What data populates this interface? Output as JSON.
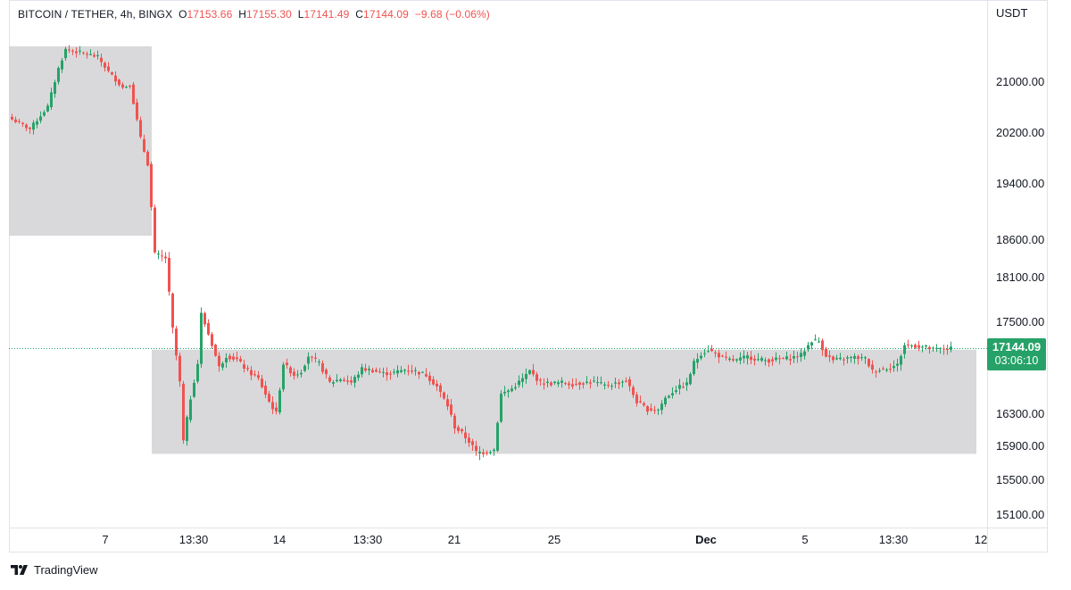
{
  "header": {
    "symbol": "BITCOIN / TETHER, 4h, BINGX",
    "o_label": "O",
    "o_value": "17153.66",
    "h_label": "H",
    "h_value": "17155.30",
    "l_label": "L",
    "l_value": "17141.49",
    "c_label": "C",
    "c_value": "17144.09",
    "change": "−9.68 (−0.06%)"
  },
  "currency": "USDT",
  "price_badge": {
    "price": "17144.09",
    "countdown": "03:06:10"
  },
  "brand": {
    "name": "TradingView",
    "logo_icon": "tradingview-logo-icon"
  },
  "colors": {
    "up": "#26a269",
    "down": "#ef5350",
    "zone": "#d7d7d9",
    "badge": "#26a269"
  },
  "chart_data": {
    "type": "candlestick",
    "y_ticks": [
      "21000.00",
      "20200.00",
      "19400.00",
      "18600.00",
      "18100.00",
      "17500.00",
      "16300.00",
      "15900.00",
      "15500.00",
      "15100.00"
    ],
    "x_ticks": [
      "7",
      "13:30",
      "14",
      "13:30",
      "21",
      "25",
      "Dec",
      "5",
      "13:30",
      "12"
    ],
    "zones": [
      {
        "name": "upper-zone",
        "from_index": 0,
        "to_index": 39,
        "low": 18650,
        "high": 21550
      },
      {
        "name": "lower-zone",
        "from_index": 40,
        "to_index": 270,
        "low": 15800,
        "high": 17130
      }
    ],
    "last_price": 17144.09,
    "key_points": [
      [
        0,
        20400
      ],
      [
        5,
        20250
      ],
      [
        10,
        20600
      ],
      [
        13,
        21200
      ],
      [
        15,
        21500
      ],
      [
        20,
        21440
      ],
      [
        24,
        21380
      ],
      [
        27,
        21150
      ],
      [
        31,
        20900
      ],
      [
        33,
        20950
      ],
      [
        36,
        20100
      ],
      [
        38,
        19700
      ],
      [
        39,
        19050
      ],
      [
        40,
        18400
      ],
      [
        43,
        18350
      ],
      [
        45,
        17400
      ],
      [
        47,
        16700
      ],
      [
        48,
        15950
      ],
      [
        50,
        16500
      ],
      [
        52,
        16950
      ],
      [
        53,
        17600
      ],
      [
        56,
        17200
      ],
      [
        58,
        16900
      ],
      [
        60,
        17050
      ],
      [
        63,
        17000
      ],
      [
        66,
        16850
      ],
      [
        69,
        16750
      ],
      [
        72,
        16450
      ],
      [
        74,
        16300
      ],
      [
        76,
        16950
      ],
      [
        79,
        16800
      ],
      [
        81,
        16850
      ],
      [
        83,
        17050
      ],
      [
        86,
        16950
      ],
      [
        89,
        16700
      ],
      [
        92,
        16750
      ],
      [
        95,
        16700
      ],
      [
        98,
        16880
      ],
      [
        101,
        16860
      ],
      [
        104,
        16820
      ],
      [
        107,
        16830
      ],
      [
        110,
        16870
      ],
      [
        113,
        16850
      ],
      [
        116,
        16800
      ],
      [
        119,
        16650
      ],
      [
        122,
        16400
      ],
      [
        124,
        16130
      ],
      [
        126,
        16050
      ],
      [
        128,
        15950
      ],
      [
        130,
        15820
      ],
      [
        132,
        15820
      ],
      [
        135,
        15850
      ],
      [
        137,
        16550
      ],
      [
        140,
        16620
      ],
      [
        143,
        16750
      ],
      [
        145,
        16850
      ],
      [
        148,
        16700
      ],
      [
        151,
        16690
      ],
      [
        154,
        16700
      ],
      [
        157,
        16680
      ],
      [
        160,
        16700
      ],
      [
        163,
        16710
      ],
      [
        166,
        16660
      ],
      [
        169,
        16690
      ],
      [
        172,
        16730
      ],
      [
        175,
        16450
      ],
      [
        178,
        16350
      ],
      [
        181,
        16350
      ],
      [
        183,
        16500
      ],
      [
        186,
        16620
      ],
      [
        189,
        16680
      ],
      [
        191,
        16960
      ],
      [
        193,
        17080
      ],
      [
        195,
        17130
      ],
      [
        197,
        17080
      ],
      [
        200,
        17000
      ],
      [
        203,
        16990
      ],
      [
        206,
        17040
      ],
      [
        209,
        17000
      ],
      [
        212,
        16990
      ],
      [
        215,
        17010
      ],
      [
        218,
        17020
      ],
      [
        221,
        17060
      ],
      [
        224,
        17250
      ],
      [
        226,
        17240
      ],
      [
        228,
        17060
      ],
      [
        230,
        16990
      ],
      [
        233,
        17010
      ],
      [
        236,
        17030
      ],
      [
        239,
        17010
      ],
      [
        241,
        16850
      ],
      [
        244,
        16880
      ],
      [
        246,
        16900
      ],
      [
        248,
        16930
      ],
      [
        250,
        17190
      ],
      [
        253,
        17180
      ],
      [
        256,
        17160
      ],
      [
        258,
        17130
      ],
      [
        261,
        17140
      ],
      [
        263,
        17144
      ]
    ]
  }
}
